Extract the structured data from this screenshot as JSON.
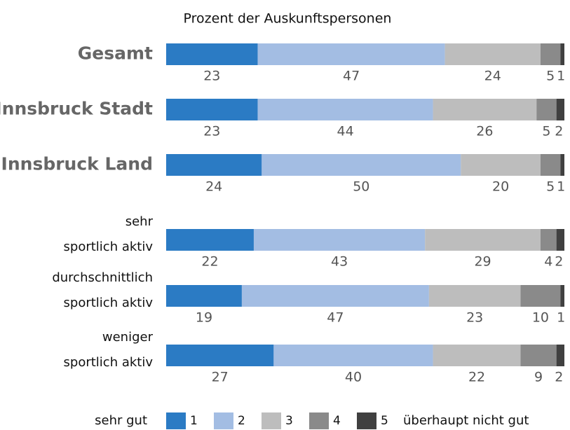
{
  "chart_data": {
    "type": "stacked-bar-horizontal",
    "title": "Prozent der Auskunftspersonen",
    "categories": [
      [
        "Gesamt"
      ],
      [
        "Innsbruck Stadt"
      ],
      [
        "Innsbruck Land"
      ],
      [
        "sehr",
        "sportlich aktiv"
      ],
      [
        "durchschnittlich",
        "sportlich aktiv"
      ],
      [
        "weniger",
        "sportlich aktiv"
      ]
    ],
    "xlim": [
      0,
      100
    ],
    "series": [
      {
        "name": "1",
        "color": "#2b7bc4",
        "values": [
          23,
          23,
          24,
          22,
          19,
          27
        ]
      },
      {
        "name": "2",
        "color": "#a3bde3",
        "values": [
          47,
          44,
          50,
          43,
          47,
          40
        ]
      },
      {
        "name": "3",
        "color": "#bdbdbd",
        "values": [
          24,
          26,
          20,
          29,
          23,
          22
        ]
      },
      {
        "name": "4",
        "color": "#8a8a8a",
        "values": [
          5,
          5,
          5,
          4,
          10,
          9
        ]
      },
      {
        "name": "5",
        "color": "#404040",
        "values": [
          1,
          2,
          1,
          2,
          1,
          2
        ]
      }
    ],
    "legend_start": "sehr gut",
    "legend_end": "überhaupt nicht gut"
  }
}
